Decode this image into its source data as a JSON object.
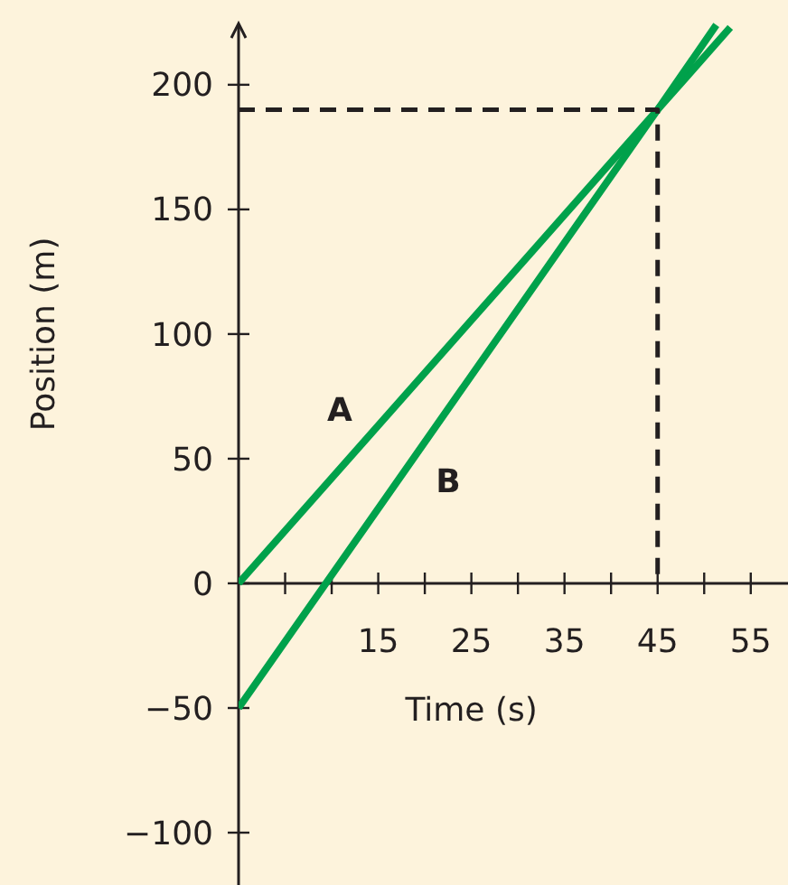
{
  "chart_data": {
    "type": "line",
    "xlabel": "Time (s)",
    "ylabel": "Position (m)",
    "xlim": [
      0,
      59
    ],
    "ylim": [
      -121,
      234
    ],
    "xticks": [
      {
        "value": 5,
        "label": null
      },
      {
        "value": 10,
        "label": null
      },
      15,
      {
        "value": 20,
        "label": null
      },
      25,
      {
        "value": 30,
        "label": null
      },
      35,
      {
        "value": 40,
        "label": null
      },
      45,
      {
        "value": 50,
        "label": null
      },
      55
    ],
    "yticks": [
      {
        "value": -100,
        "label": "−100"
      },
      {
        "value": -50,
        "label": "−50"
      },
      0,
      50,
      100,
      150,
      200
    ],
    "grid": false,
    "marker": "none",
    "series": [
      {
        "name": "A",
        "color": "#00a14b",
        "x": [
          0,
          45,
          52.8
        ],
        "values": [
          0,
          190,
          223
        ],
        "line_style": "solid"
      },
      {
        "name": "B",
        "color": "#00a14b",
        "x": [
          0,
          45,
          51.3
        ],
        "values": [
          -50,
          190,
          224
        ],
        "line_style": "solid"
      },
      {
        "color": "#231f20",
        "x": [
          0,
          45,
          45
        ],
        "values": [
          190,
          190,
          0
        ],
        "line_style": "dashed"
      }
    ]
  }
}
